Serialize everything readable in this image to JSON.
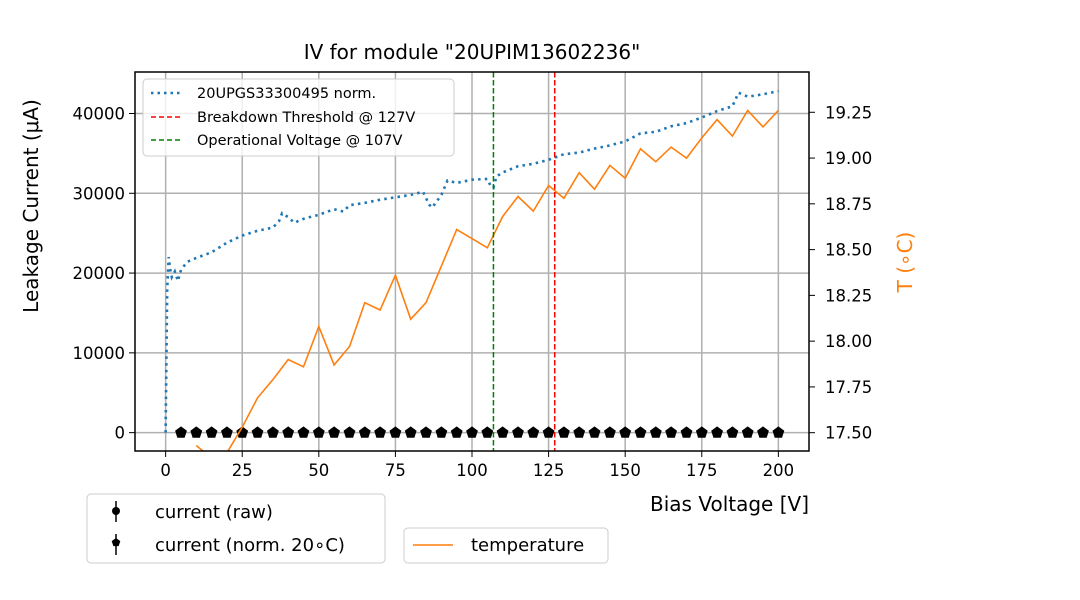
{
  "chart_data": {
    "type": "line",
    "title": "IV for module \"20UPIM13602236\"",
    "xlabel": "Bias Voltage [V]",
    "ylabel": "Leakage Current (μA)",
    "ylabel_right": "T (∘C)",
    "xlim": [
      -10,
      210
    ],
    "ylim": [
      -2300,
      45200
    ],
    "ylim_right": [
      17.4,
      19.47
    ],
    "grid": true,
    "x_ticks": [
      0,
      25,
      50,
      75,
      100,
      125,
      150,
      175,
      200
    ],
    "x_tick_labels": [
      "0",
      "25",
      "50",
      "75",
      "100",
      "125",
      "150",
      "175",
      "200"
    ],
    "y_ticks": [
      0,
      10000,
      20000,
      30000,
      40000
    ],
    "y_tick_labels": [
      "0",
      "10000",
      "20000",
      "30000",
      "40000"
    ],
    "y_ticks_right": [
      17.5,
      17.75,
      18.0,
      18.25,
      18.5,
      18.75,
      19.0,
      19.25
    ],
    "y_tick_labels_right": [
      "17.50",
      "17.75",
      "18.00",
      "18.25",
      "18.50",
      "18.75",
      "19.00",
      "19.25"
    ],
    "series": [
      {
        "name": "20UPGS33300495 norm.",
        "style": "dotted",
        "color": "#1f77b4",
        "axis": "left",
        "x": [
          0,
          0.5,
          1,
          1.5,
          2,
          3,
          4,
          5,
          7,
          10,
          15,
          20,
          25,
          30,
          35,
          37,
          38,
          40,
          42,
          45,
          50,
          55,
          58,
          60,
          65,
          70,
          75,
          80,
          84,
          86,
          87,
          90,
          92,
          95,
          100,
          105,
          106,
          107,
          108,
          110,
          115,
          120,
          125,
          130,
          135,
          140,
          145,
          150,
          155,
          160,
          165,
          170,
          175,
          180,
          185,
          187,
          190,
          195,
          200
        ],
        "values": [
          0,
          18000,
          22000,
          20500,
          19500,
          20200,
          19000,
          20400,
          21400,
          21900,
          22600,
          23800,
          24700,
          25300,
          25700,
          26500,
          27500,
          27000,
          26300,
          26800,
          27300,
          28000,
          27700,
          28500,
          28800,
          29200,
          29500,
          29800,
          30200,
          28600,
          28200,
          29800,
          31600,
          31300,
          31700,
          31800,
          31000,
          30700,
          32100,
          32600,
          33400,
          33700,
          34200,
          34900,
          35100,
          35600,
          36000,
          36500,
          37500,
          37700,
          38400,
          38800,
          39500,
          40300,
          40900,
          42600,
          42100,
          42400,
          42800
        ]
      },
      {
        "name": "current (norm. 20∘C)",
        "style": "star-markers",
        "color": "#000000",
        "axis": "left",
        "x": [
          5,
          10,
          15,
          20,
          25,
          30,
          35,
          40,
          45,
          50,
          55,
          60,
          65,
          70,
          75,
          80,
          85,
          90,
          95,
          100,
          105,
          110,
          115,
          120,
          125,
          130,
          135,
          140,
          145,
          150,
          155,
          160,
          165,
          170,
          175,
          180,
          185,
          190,
          195,
          200
        ],
        "values": [
          0,
          0,
          0,
          0,
          0,
          0,
          0,
          0,
          0,
          0,
          0,
          0,
          0,
          0,
          0,
          0,
          0,
          0,
          0,
          0,
          0,
          0,
          0,
          0,
          0,
          0,
          0,
          0,
          0,
          0,
          0,
          0,
          0,
          0,
          0,
          0,
          0,
          0,
          0,
          0
        ]
      },
      {
        "name": "temperature",
        "style": "solid",
        "color": "#ff7f0e",
        "axis": "right",
        "x": [
          10,
          15,
          20,
          25,
          30,
          35,
          40,
          45,
          50,
          55,
          60,
          65,
          70,
          75,
          80,
          85,
          90,
          95,
          100,
          105,
          110,
          115,
          120,
          125,
          130,
          135,
          140,
          145,
          150,
          155,
          160,
          165,
          170,
          175,
          180,
          185,
          190,
          195,
          200
        ],
        "values": [
          17.43,
          17.36,
          17.39,
          17.53,
          17.69,
          17.79,
          17.9,
          17.86,
          18.08,
          17.87,
          17.97,
          18.21,
          18.17,
          18.36,
          18.12,
          18.21,
          18.41,
          18.61,
          18.56,
          18.51,
          18.68,
          18.79,
          18.71,
          18.85,
          18.78,
          18.92,
          18.83,
          18.96,
          18.89,
          19.05,
          18.98,
          19.06,
          19.0,
          19.11,
          19.21,
          19.12,
          19.26,
          19.17,
          19.26
        ]
      }
    ],
    "vlines": [
      {
        "name": "Breakdown Threshold @ 127V",
        "x": 127,
        "color": "#ff0000",
        "style": "dashed"
      },
      {
        "name": "Operational Voltage @ 107V",
        "x": 107,
        "color": "#008000",
        "style": "dashed"
      }
    ],
    "legends": {
      "top_left": {
        "placement": "upper-left",
        "entries": [
          {
            "label": "20UPGS33300495 norm.",
            "color": "#1f77b4",
            "style": "dotted"
          },
          {
            "label": "Breakdown Threshold @ 127V",
            "color": "#ff0000",
            "style": "dashed"
          },
          {
            "label": "Operational Voltage @ 107V",
            "color": "#008000",
            "style": "dashed"
          }
        ]
      },
      "bottom_left": {
        "placement": "below-left",
        "entries": [
          {
            "label": "current (raw)",
            "marker": "circle-errorbar",
            "color": "#000000"
          },
          {
            "label": "current (norm. 20∘C)",
            "marker": "star-errorbar",
            "color": "#000000"
          }
        ]
      },
      "bottom_middle": {
        "placement": "below-center",
        "entries": [
          {
            "label": "temperature",
            "color": "#ff7f0e",
            "style": "solid"
          }
        ]
      }
    }
  }
}
